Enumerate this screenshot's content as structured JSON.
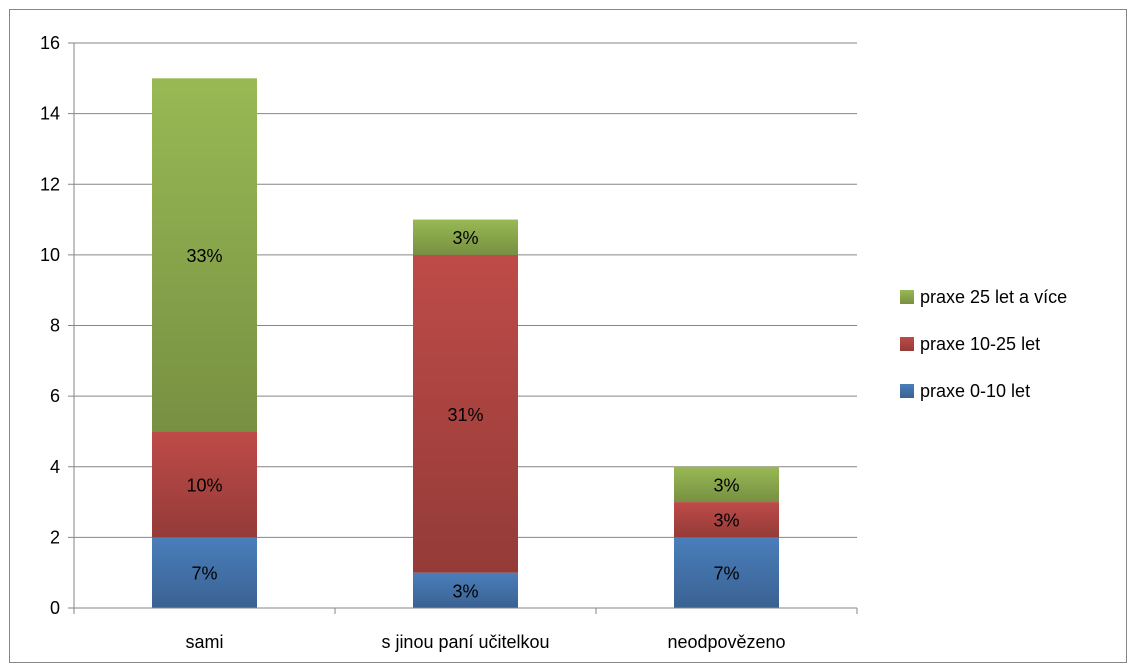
{
  "chart_data": {
    "type": "bar",
    "stacked": true,
    "categories": [
      "sami",
      "s jinou paní učitelkou",
      "neodpovězeno"
    ],
    "series": [
      {
        "name": "praxe 0-10 let",
        "values": [
          2,
          1,
          2
        ],
        "labels": [
          "7%",
          "3%",
          "7%"
        ],
        "color": "#4a7ebb"
      },
      {
        "name": "praxe 10-25 let",
        "values": [
          3,
          9,
          1
        ],
        "labels": [
          "10%",
          "31%",
          "3%"
        ],
        "color": "#be4b48"
      },
      {
        "name": "praxe 25 let a více",
        "values": [
          10,
          1,
          1
        ],
        "labels": [
          "33%",
          "3%",
          "3%"
        ],
        "color": "#98b954"
      }
    ],
    "legend_order": [
      "praxe 25 let a více",
      "praxe 10-25 let",
      "praxe 0-10 let"
    ],
    "title": "",
    "xlabel": "",
    "ylabel": "",
    "ylim": [
      0,
      16
    ],
    "yticks": [
      0,
      2,
      4,
      6,
      8,
      10,
      12,
      14,
      16
    ],
    "grid": true,
    "legend_position": "right"
  }
}
